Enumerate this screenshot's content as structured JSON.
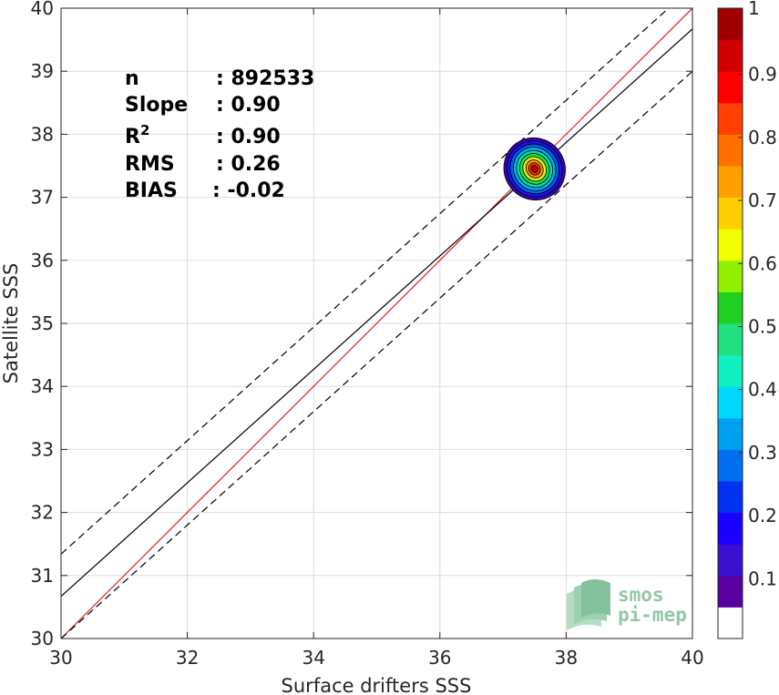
{
  "chart_data": {
    "type": "scatter",
    "xlabel": "Surface drifters SSS",
    "ylabel": "Satellite SSS",
    "xlim": [
      30,
      40
    ],
    "ylim": [
      30,
      40
    ],
    "xticks": [
      30,
      32,
      34,
      36,
      38,
      40
    ],
    "yticks": [
      30,
      31,
      32,
      33,
      34,
      35,
      36,
      37,
      38,
      39,
      40
    ],
    "grid": true,
    "stats": [
      {
        "key": "n",
        "value": ": 892533"
      },
      {
        "key": "Slope",
        "value": ": 0.90"
      },
      {
        "key": "R",
        "sup": "2",
        "value": ": 0.90"
      },
      {
        "key": "RMS",
        "value": ": 0.26"
      },
      {
        "key": "BIAS",
        "value": ": -0.02"
      }
    ],
    "lines": [
      {
        "role": "identity",
        "color": "#e02020",
        "style": "solid",
        "x": [
          30,
          40
        ],
        "y": [
          30,
          40
        ]
      },
      {
        "role": "regression",
        "color": "#000000",
        "style": "solid",
        "x": [
          30,
          40
        ],
        "y": [
          30.67,
          39.67
        ]
      },
      {
        "role": "upper-bound",
        "color": "#000000",
        "style": "dashed",
        "x": [
          30,
          40
        ],
        "y": [
          31.34,
          40.34
        ]
      },
      {
        "role": "lower-bound",
        "color": "#000000",
        "style": "dashed",
        "x": [
          30,
          40
        ],
        "y": [
          30.0,
          39.0
        ]
      }
    ],
    "density_center": {
      "x": 37.5,
      "y": 37.45
    },
    "density_contours": [
      {
        "level": 0.05,
        "rx": 0.48,
        "ry": 0.5,
        "color": "#3b00b0"
      },
      {
        "level": 0.15,
        "rx": 0.43,
        "ry": 0.45,
        "color": "#1a10f0"
      },
      {
        "level": 0.25,
        "rx": 0.38,
        "ry": 0.4,
        "color": "#0060f0"
      },
      {
        "level": 0.35,
        "rx": 0.33,
        "ry": 0.35,
        "color": "#00b0f0"
      },
      {
        "level": 0.45,
        "rx": 0.28,
        "ry": 0.3,
        "color": "#00e0b0"
      },
      {
        "level": 0.55,
        "rx": 0.23,
        "ry": 0.25,
        "color": "#20e040"
      },
      {
        "level": 0.65,
        "rx": 0.18,
        "ry": 0.2,
        "color": "#e0f020"
      },
      {
        "level": 0.75,
        "rx": 0.13,
        "ry": 0.15,
        "color": "#ff9000"
      },
      {
        "level": 0.85,
        "rx": 0.09,
        "ry": 0.1,
        "color": "#ff3000"
      },
      {
        "level": 0.95,
        "rx": 0.05,
        "ry": 0.06,
        "color": "#b00000"
      }
    ],
    "colorbar": {
      "ticks": [
        "0.1",
        "0.2",
        "0.3",
        "0.4",
        "0.5",
        "0.6",
        "0.7",
        "0.8",
        "0.9",
        "1"
      ],
      "colors": [
        "#ffffff",
        "#5a00a0",
        "#3b10d0",
        "#1a00ff",
        "#0030f0",
        "#0070f0",
        "#00a0f0",
        "#00d8ff",
        "#10f0c0",
        "#20e080",
        "#20d020",
        "#90f000",
        "#f0ff00",
        "#ffd000",
        "#ffa000",
        "#ff7000",
        "#ff4000",
        "#ff0000",
        "#d00000",
        "#a00000"
      ]
    },
    "watermark": {
      "line1": "smos",
      "line2": "pi-mep"
    }
  }
}
